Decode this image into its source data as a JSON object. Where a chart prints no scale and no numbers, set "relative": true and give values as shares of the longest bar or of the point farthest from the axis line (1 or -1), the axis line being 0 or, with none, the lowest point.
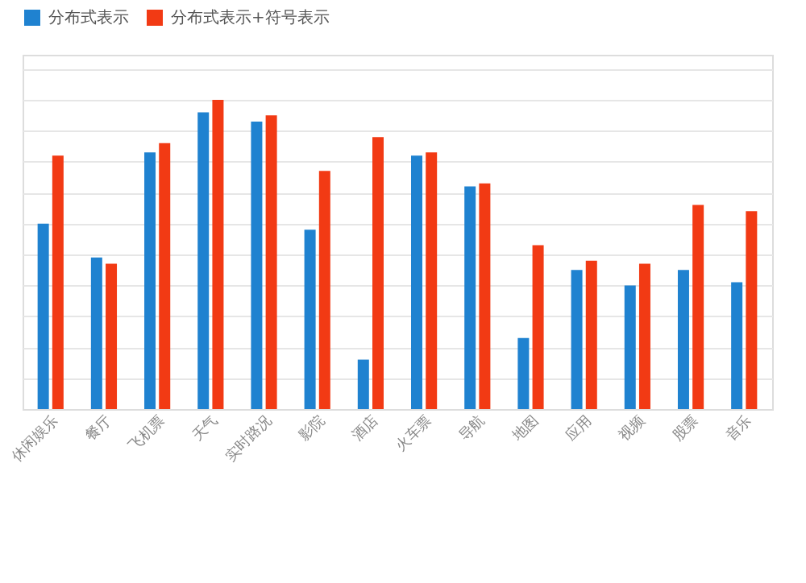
{
  "chart_data": {
    "type": "bar",
    "relative": true,
    "grid": "y",
    "legend": "top",
    "categories": [
      "休闲娱乐",
      "餐厅",
      "飞机票",
      "天气",
      "实时路况",
      "影院",
      "酒店",
      "火车票",
      "导航",
      "地图",
      "应用",
      "视频",
      "股票",
      "音乐"
    ],
    "series": [
      {
        "name": "分布式表示",
        "color": "#1f82d0",
        "values": [
          0.6,
          0.49,
          0.83,
          0.96,
          0.93,
          0.58,
          0.16,
          0.82,
          0.72,
          0.23,
          0.45,
          0.4,
          0.45,
          0.41
        ]
      },
      {
        "name": "分布式表示+符号表示",
        "color": "#f23a14",
        "values": [
          0.82,
          0.47,
          0.86,
          1,
          0.95,
          0.77,
          0.88,
          0.83,
          0.73,
          0.53,
          0.48,
          0.47,
          0.66,
          0.64
        ]
      }
    ]
  }
}
